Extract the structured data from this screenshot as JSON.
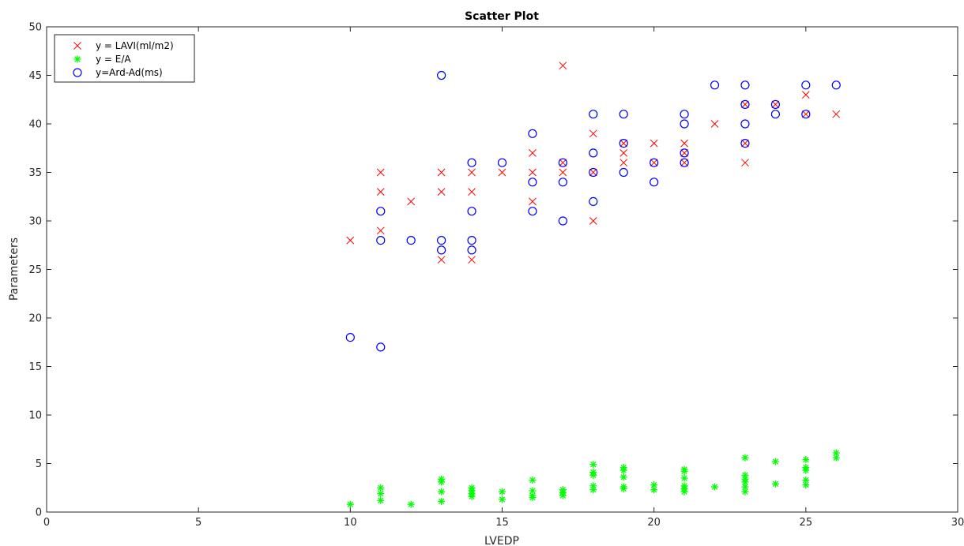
{
  "chart_data": {
    "type": "scatter",
    "title": "Scatter Plot",
    "xlabel": "LVEDP",
    "ylabel": "Parameters",
    "xlim": [
      0,
      30
    ],
    "ylim": [
      0,
      50
    ],
    "xticks": [
      0,
      5,
      10,
      15,
      20,
      25,
      30
    ],
    "yticks": [
      0,
      5,
      10,
      15,
      20,
      25,
      30,
      35,
      40,
      45,
      50
    ],
    "grid": false,
    "legend_position": "top-left",
    "series": [
      {
        "name": "y = LAVI(ml/m2)",
        "marker": "x",
        "color": "#ff0000",
        "points": [
          [
            10,
            28
          ],
          [
            11,
            35
          ],
          [
            11,
            33
          ],
          [
            11,
            29
          ],
          [
            12,
            32
          ],
          [
            13,
            35
          ],
          [
            13,
            33
          ],
          [
            13,
            26
          ],
          [
            14,
            35
          ],
          [
            14,
            33
          ],
          [
            14,
            26
          ],
          [
            15,
            35
          ],
          [
            16,
            37
          ],
          [
            16,
            35
          ],
          [
            16,
            32
          ],
          [
            17,
            46
          ],
          [
            17,
            36
          ],
          [
            17,
            35
          ],
          [
            18,
            39
          ],
          [
            18,
            35
          ],
          [
            18,
            30
          ],
          [
            19,
            38
          ],
          [
            19,
            37
          ],
          [
            19,
            36
          ],
          [
            20,
            38
          ],
          [
            20,
            36
          ],
          [
            21,
            38
          ],
          [
            21,
            37
          ],
          [
            21,
            36
          ],
          [
            22,
            40
          ],
          [
            23,
            42
          ],
          [
            23,
            38
          ],
          [
            23,
            36
          ],
          [
            24,
            42
          ],
          [
            25,
            43
          ],
          [
            25,
            41
          ],
          [
            26,
            41
          ]
        ]
      },
      {
        "name": "y = E/A",
        "marker": "asterisk",
        "color": "#00ff00",
        "points": [
          [
            10,
            0.8
          ],
          [
            11,
            2.5
          ],
          [
            11,
            1.9
          ],
          [
            11,
            1.2
          ],
          [
            12,
            0.8
          ],
          [
            13,
            3.4
          ],
          [
            13,
            3.1
          ],
          [
            13,
            2.1
          ],
          [
            13,
            1.1
          ],
          [
            14,
            2.5
          ],
          [
            14,
            2.2
          ],
          [
            14,
            1.9
          ],
          [
            14,
            1.6
          ],
          [
            15,
            2.1
          ],
          [
            15,
            1.3
          ],
          [
            16,
            3.3
          ],
          [
            16,
            2.2
          ],
          [
            16,
            1.7
          ],
          [
            16,
            1.5
          ],
          [
            17,
            2.3
          ],
          [
            17,
            2.0
          ],
          [
            17,
            1.7
          ],
          [
            18,
            4.9
          ],
          [
            18,
            4.1
          ],
          [
            18,
            3.8
          ],
          [
            18,
            2.7
          ],
          [
            18,
            2.3
          ],
          [
            19,
            4.6
          ],
          [
            19,
            4.3
          ],
          [
            19,
            3.6
          ],
          [
            19,
            2.6
          ],
          [
            19,
            2.4
          ],
          [
            20,
            2.8
          ],
          [
            20,
            2.3
          ],
          [
            21,
            4.4
          ],
          [
            21,
            4.2
          ],
          [
            21,
            3.5
          ],
          [
            21,
            2.7
          ],
          [
            21,
            2.4
          ],
          [
            21,
            2.1
          ],
          [
            22,
            2.6
          ],
          [
            23,
            5.6
          ],
          [
            23,
            3.8
          ],
          [
            23,
            3.4
          ],
          [
            23,
            3.1
          ],
          [
            23,
            2.6
          ],
          [
            23,
            2.1
          ],
          [
            24,
            5.2
          ],
          [
            24,
            2.9
          ],
          [
            25,
            5.4
          ],
          [
            25,
            4.6
          ],
          [
            25,
            4.3
          ],
          [
            25,
            3.3
          ],
          [
            25,
            2.8
          ],
          [
            26,
            6.1
          ],
          [
            26,
            5.6
          ]
        ]
      },
      {
        "name": "y=Ard-Ad(ms)",
        "marker": "circle",
        "color": "#0000ff",
        "points": [
          [
            10,
            18
          ],
          [
            11,
            31
          ],
          [
            11,
            28
          ],
          [
            11,
            17
          ],
          [
            12,
            28
          ],
          [
            13,
            45
          ],
          [
            13,
            28
          ],
          [
            13,
            27
          ],
          [
            14,
            36
          ],
          [
            14,
            31
          ],
          [
            14,
            28
          ],
          [
            14,
            27
          ],
          [
            15,
            36
          ],
          [
            16,
            39
          ],
          [
            16,
            34
          ],
          [
            16,
            31
          ],
          [
            17,
            36
          ],
          [
            17,
            34
          ],
          [
            17,
            30
          ],
          [
            18,
            41
          ],
          [
            18,
            37
          ],
          [
            18,
            35
          ],
          [
            18,
            32
          ],
          [
            19,
            41
          ],
          [
            19,
            38
          ],
          [
            19,
            35
          ],
          [
            20,
            36
          ],
          [
            20,
            34
          ],
          [
            21,
            41
          ],
          [
            21,
            40
          ],
          [
            21,
            37
          ],
          [
            21,
            36
          ],
          [
            22,
            44
          ],
          [
            23,
            44
          ],
          [
            23,
            42
          ],
          [
            23,
            40
          ],
          [
            23,
            38
          ],
          [
            24,
            42
          ],
          [
            24,
            41
          ],
          [
            25,
            44
          ],
          [
            25,
            41
          ],
          [
            26,
            44
          ]
        ]
      }
    ]
  }
}
